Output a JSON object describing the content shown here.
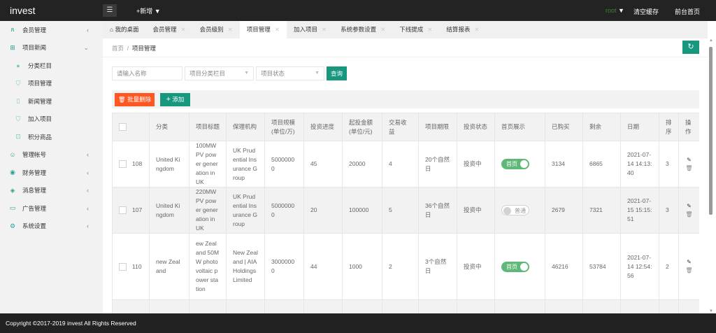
{
  "header": {
    "logo": "invest",
    "menu_icon": "hamburger-icon",
    "new_label": "+新增 ▼",
    "user": "root",
    "user_color": "#2e8b2e",
    "clear_cache": "清空缓存",
    "front_home": "前台首页"
  },
  "sidebar": {
    "items": [
      {
        "icon": "user-icon",
        "glyph": "ጸ",
        "label": "会员管理",
        "chev": "‹"
      },
      {
        "icon": "book-icon",
        "glyph": "⊞",
        "label": "项目新闻",
        "chev": "⌄"
      },
      {
        "icon": "leaf-icon",
        "glyph": "●",
        "label": "分类栏目",
        "sub": true
      },
      {
        "icon": "cart-icon",
        "glyph": "⛉",
        "label": "项目管理",
        "sub": true
      },
      {
        "icon": "file-icon",
        "glyph": "▯",
        "label": "新闻管理",
        "sub": true
      },
      {
        "icon": "cart-icon",
        "glyph": "⛉",
        "label": "加入项目",
        "sub": true
      },
      {
        "icon": "gift-icon",
        "glyph": "⊡",
        "label": "积分商品",
        "sub": true
      },
      {
        "icon": "admin-icon",
        "glyph": "☺",
        "label": "管理帐号",
        "chev": "‹"
      },
      {
        "icon": "finance-icon",
        "glyph": "◉",
        "label": "财务管理",
        "chev": "‹"
      },
      {
        "icon": "message-icon",
        "glyph": "◈",
        "label": "消息管理",
        "chev": "‹"
      },
      {
        "icon": "ad-icon",
        "glyph": "▭",
        "label": "广告管理",
        "chev": "‹"
      },
      {
        "icon": "gear-icon",
        "glyph": "⚙",
        "label": "系统设置",
        "chev": "‹"
      }
    ]
  },
  "tabs": [
    {
      "label": "我的桌面",
      "home": true
    },
    {
      "label": "会员管理"
    },
    {
      "label": "会员级别"
    },
    {
      "label": "项目管理",
      "active": true
    },
    {
      "label": "加入项目"
    },
    {
      "label": "系统参数设置"
    },
    {
      "label": "下线提成"
    },
    {
      "label": "结算报表"
    }
  ],
  "breadcrumb": {
    "home": "首页",
    "sep": "/",
    "current": "项目管理"
  },
  "filters": {
    "name_placeholder": "请输入名称",
    "category": "项目分类栏目",
    "status": "项目状态",
    "query": "查询"
  },
  "actions": {
    "batch_delete": "批量删除",
    "add": "添加"
  },
  "table": {
    "headers": [
      "",
      "分类",
      "项目标题",
      "保理机构",
      "项目规模(单位/万)",
      "投资进度",
      "起投金额(单位/元)",
      "交易收益",
      "项目期限",
      "投资状态",
      "首页展示",
      "已购买",
      "剩余",
      "日期",
      "排序",
      "操作"
    ],
    "rows": [
      {
        "id": "108",
        "category": "United Kingdom",
        "title": "100MW PV power generation in UK",
        "agency": "UK Prudential Insurance Group",
        "scale": "50000000",
        "progress": "45",
        "min": "20000",
        "yield": "4",
        "term": "20个自然日",
        "status": "投资中",
        "home": true,
        "home_label": "首页",
        "bought": "3134",
        "remain": "6865",
        "date": "2021-07-14 14:13:40",
        "sort": "3"
      },
      {
        "id": "107",
        "category": "United Kingdom",
        "title": "220MW PV power generation in UK",
        "agency": "UK Prudential Insurance Group",
        "scale": "50000000",
        "progress": "20",
        "min": "100000",
        "yield": "5",
        "term": "36个自然日",
        "status": "投资中",
        "home": false,
        "home_label": "普通",
        "bought": "2679",
        "remain": "7321",
        "date": "2021-07-15 15:15:51",
        "sort": "3"
      },
      {
        "id": "110",
        "category": "new Zealand",
        "title": "ew Zealand 50MW photovoltaic power station",
        "agency": "New Zealand | AIA Holdings Limited",
        "scale": "30000000",
        "progress": "44",
        "min": "1000",
        "yield": "2",
        "term": "3个自然日",
        "status": "投资中",
        "home": true,
        "home_label": "首页",
        "bought": "46216",
        "remain": "53784",
        "date": "2021-07-14 12:54:56",
        "sort": "2"
      },
      {
        "id": "",
        "category": "",
        "title": "New Zea",
        "agency": "New Zea",
        "scale": "",
        "progress": "",
        "min": "",
        "yield": "",
        "term": "",
        "status": "",
        "home": null,
        "home_label": "",
        "bought": "",
        "remain": "",
        "date": "",
        "sort": ""
      }
    ]
  },
  "footer": "Copyright ©2017-2019 invest All Rights Reserved"
}
